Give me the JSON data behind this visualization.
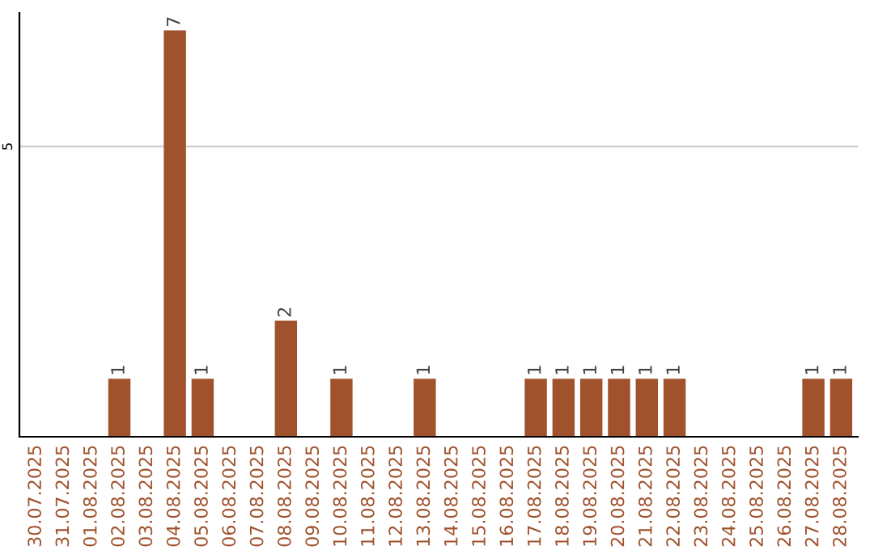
{
  "chart_data": {
    "type": "bar",
    "categories": [
      "30.07.2025",
      "31.07.2025",
      "01.08.2025",
      "02.08.2025",
      "03.08.2025",
      "04.08.2025",
      "05.08.2025",
      "06.08.2025",
      "07.08.2025",
      "08.08.2025",
      "09.08.2025",
      "10.08.2025",
      "11.08.2025",
      "12.08.2025",
      "13.08.2025",
      "14.08.2025",
      "15.08.2025",
      "16.08.2025",
      "17.08.2025",
      "18.08.2025",
      "19.08.2025",
      "20.08.2025",
      "21.08.2025",
      "22.08.2025",
      "23.08.2025",
      "24.08.2025",
      "25.08.2025",
      "26.08.2025",
      "27.08.2025",
      "28.08.2025"
    ],
    "values": [
      null,
      null,
      null,
      1,
      null,
      7,
      1,
      null,
      null,
      2,
      null,
      1,
      null,
      null,
      1,
      null,
      null,
      null,
      1,
      1,
      1,
      1,
      1,
      1,
      null,
      null,
      null,
      null,
      1,
      1
    ],
    "color": "#a0522d",
    "ylim": [
      0,
      7.3
    ],
    "yticks": [
      5
    ],
    "grid": "y",
    "data_labels": true,
    "legend": false
  }
}
